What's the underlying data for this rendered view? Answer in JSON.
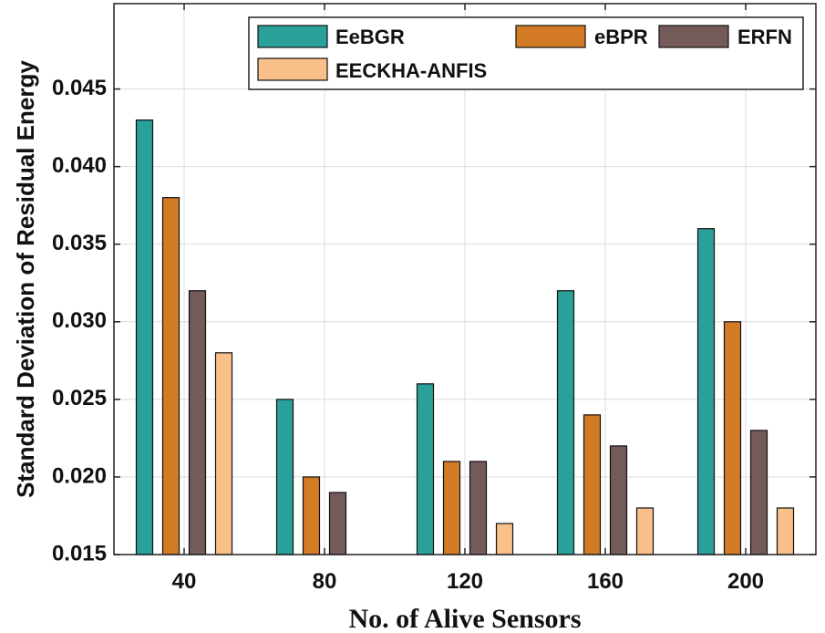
{
  "chart_data": {
    "type": "bar",
    "title": "",
    "xlabel": "No. of Alive Sensors",
    "ylabel": "Standard Deviation of Residual Energy",
    "categories": [
      "40",
      "80",
      "120",
      "160",
      "200"
    ],
    "ylim": [
      0.015,
      0.0505
    ],
    "yticks": [
      "0.015",
      "0.020",
      "0.025",
      "0.030",
      "0.035",
      "0.040",
      "0.045"
    ],
    "grid": true,
    "legend_position": "top-right",
    "series": [
      {
        "name": "EeBGR",
        "color": "#2aa09a",
        "values": [
          0.043,
          0.025,
          0.026,
          0.032,
          0.036
        ]
      },
      {
        "name": "eBPR",
        "color": "#d27b24",
        "values": [
          0.038,
          0.02,
          0.021,
          0.024,
          0.03
        ]
      },
      {
        "name": "ERFN",
        "color": "#745b59",
        "values": [
          0.032,
          0.019,
          0.021,
          0.022,
          0.023
        ]
      },
      {
        "name": "EECKHA-ANFIS",
        "color": "#f9c08a",
        "values": [
          0.028,
          0.015,
          0.017,
          0.018,
          0.018
        ]
      }
    ]
  }
}
